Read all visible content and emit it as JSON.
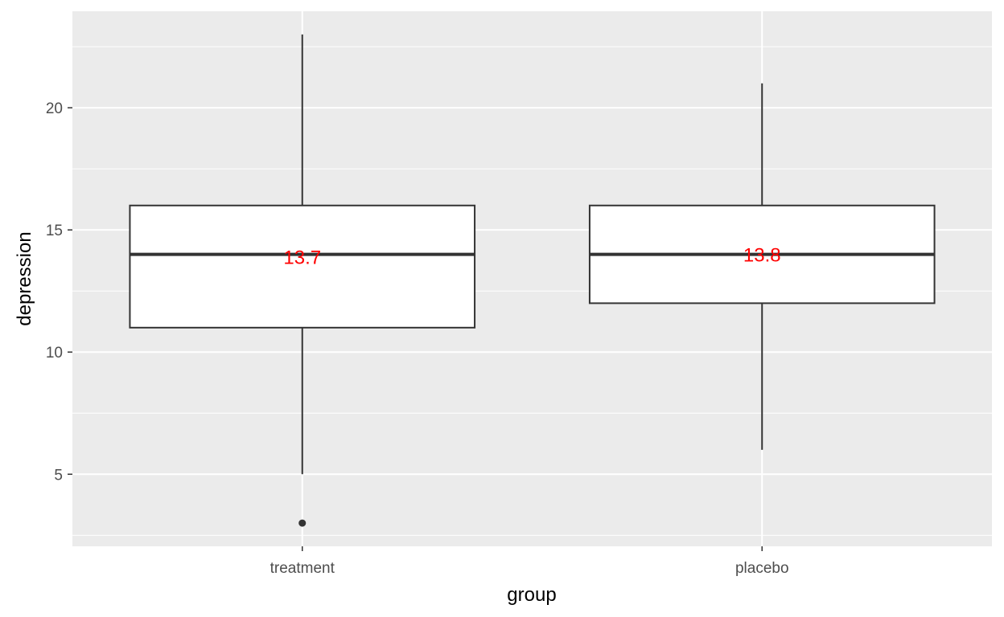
{
  "chart_data": {
    "type": "box",
    "xlabel": "group",
    "ylabel": "depression",
    "ylim": [
      2.05,
      23.95
    ],
    "y_ticks": [
      5,
      10,
      15,
      20
    ],
    "y_tick_labels": [
      "5",
      "10",
      "15",
      "20"
    ],
    "grid": true,
    "legend": "none",
    "categories": [
      "treatment",
      "placebo"
    ],
    "boxes": [
      {
        "category": "treatment",
        "whisker_low": 5,
        "q1": 11,
        "median": 14,
        "q3": 16,
        "whisker_high": 23,
        "outliers": [
          3
        ],
        "mean": 13.7,
        "mean_label": "13.7"
      },
      {
        "category": "placebo",
        "whisker_low": 6,
        "q1": 12,
        "median": 14,
        "q3": 16,
        "whisker_high": 21,
        "outliers": [],
        "mean": 13.8,
        "mean_label": "13.8"
      }
    ],
    "colors": {
      "panel_background": "#ebebeb",
      "grid_major": "#ffffff",
      "grid_minor": "#f5f5f5",
      "box_fill": "#ffffff",
      "box_line": "#333333",
      "mean_label": "#ff0000"
    }
  }
}
